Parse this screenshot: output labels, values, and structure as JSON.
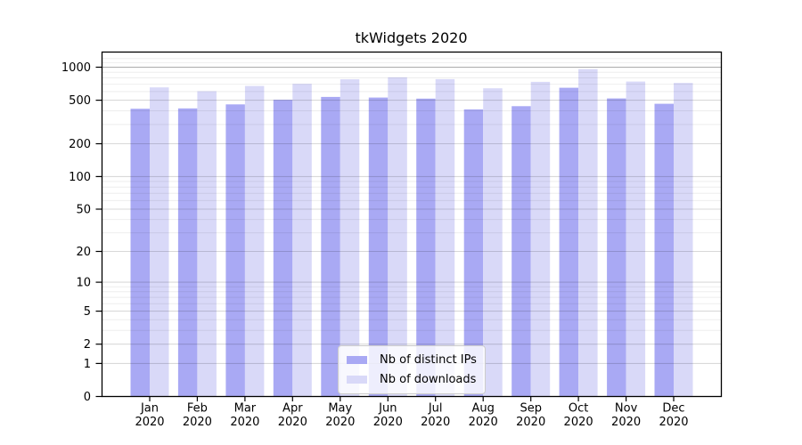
{
  "title": "tkWidgets 2020",
  "chart_data": {
    "type": "bar",
    "title": "tkWidgets 2020",
    "categories": [
      "Jan",
      "Feb",
      "Mar",
      "Apr",
      "May",
      "Jun",
      "Jul",
      "Aug",
      "Sep",
      "Oct",
      "Nov",
      "Dec"
    ],
    "category_sublabel": "2020",
    "series": [
      {
        "name": "Nb of distinct IPs",
        "color": "#a9a9f4",
        "values": [
          418,
          421,
          458,
          505,
          536,
          529,
          517,
          412,
          441,
          650,
          519,
          464
        ]
      },
      {
        "name": "Nb of downloads",
        "color": "#d9d9f8",
        "values": [
          654,
          604,
          674,
          706,
          776,
          810,
          779,
          643,
          736,
          962,
          741,
          719
        ]
      }
    ],
    "yscale": "log1p",
    "y_axis": {
      "ticks": [
        0,
        1,
        2,
        5,
        10,
        20,
        50,
        100,
        200,
        500,
        1000
      ],
      "minor_ticks": [
        3,
        4,
        6,
        7,
        8,
        9,
        30,
        40,
        60,
        70,
        80,
        90,
        300,
        400,
        600,
        700,
        800,
        900,
        1100,
        1200
      ],
      "range_top": 1375
    },
    "grid": {
      "on": true,
      "minor_color": "rgba(0,0,0,0.07)",
      "major_color": "rgba(0,0,0,0.15)",
      "emphasis_value": 1000,
      "emphasis_color": "rgba(0,0,0,0.33)"
    },
    "legend": {
      "position": "lower center"
    },
    "axis_color": "#000000",
    "background": "#ffffff"
  }
}
